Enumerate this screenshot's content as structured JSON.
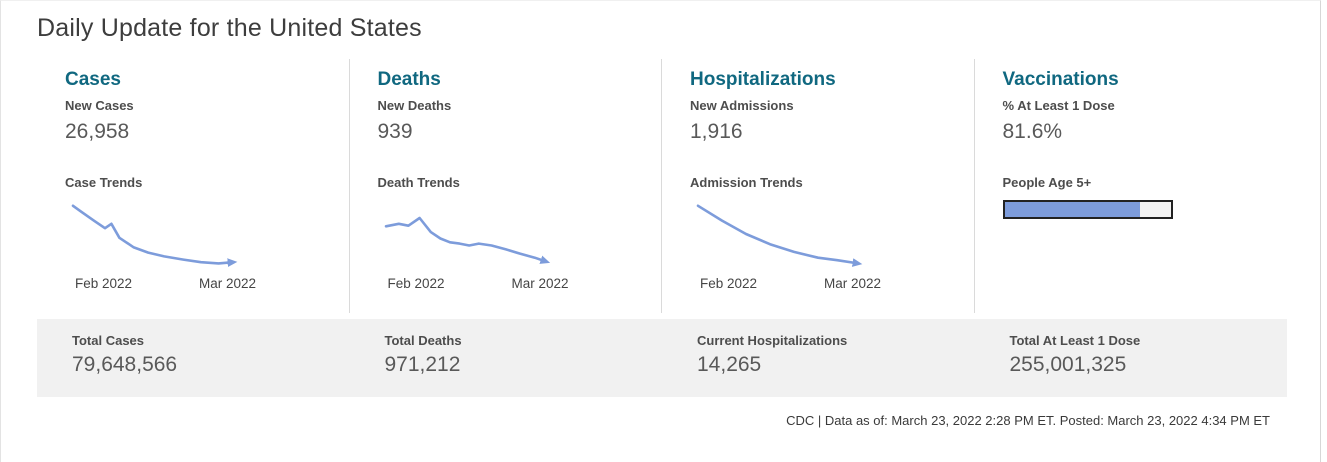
{
  "page": {
    "title": "Daily Update for the United States"
  },
  "columns": [
    {
      "heading": "Cases",
      "metric_label": "New Cases",
      "metric_value": "26,958",
      "trend_label": "Case Trends",
      "x_start": "Feb 2022",
      "x_end": "Mar 2022"
    },
    {
      "heading": "Deaths",
      "metric_label": "New Deaths",
      "metric_value": "939",
      "trend_label": "Death Trends",
      "x_start": "Feb 2022",
      "x_end": "Mar 2022"
    },
    {
      "heading": "Hospitalizations",
      "metric_label": "New Admissions",
      "metric_value": "1,916",
      "trend_label": "Admission Trends",
      "x_start": "Feb 2022",
      "x_end": "Mar 2022"
    },
    {
      "heading": "Vaccinations",
      "metric_label": "% At Least 1 Dose",
      "metric_value": "81.6%",
      "trend_label": "People Age 5+"
    }
  ],
  "totals": [
    {
      "label": "Total Cases",
      "value": "79,648,566"
    },
    {
      "label": "Total Deaths",
      "value": "971,212"
    },
    {
      "label": "Current Hospitalizations",
      "value": "14,265"
    },
    {
      "label": "Total At Least 1 Dose",
      "value": "255,001,325"
    }
  ],
  "footer": {
    "text": "CDC | Data as of: March 23, 2022 2:28 PM ET. Posted: March 23, 2022 4:34 PM ET"
  },
  "colors": {
    "accent_teal": "#106880",
    "sparkline": "#7D9CDB",
    "band_bg": "#F1F1F1",
    "divider": "#DADADA",
    "label_text": "#4D4D4D",
    "value_text": "#595959",
    "progress_fill": "#7D9CDB",
    "progress_track": "#F3F3F3",
    "progress_border": "#222222"
  },
  "chart_data": [
    {
      "type": "line",
      "name": "case-trends",
      "title": "Case Trends",
      "x_range": [
        "Feb 2022",
        "Mar 2022"
      ],
      "y_axis": "unlabeled sparkline, values normalized 0-100",
      "trend": "declining with small mid-February bump, flattening toward March, arrow at end",
      "points": [
        [
          0,
          94
        ],
        [
          5,
          85
        ],
        [
          13,
          71
        ],
        [
          20,
          59
        ],
        [
          24,
          66
        ],
        [
          29,
          44
        ],
        [
          38,
          29
        ],
        [
          47,
          21
        ],
        [
          57,
          15
        ],
        [
          69,
          10
        ],
        [
          80,
          6
        ],
        [
          91,
          4
        ],
        [
          100,
          6
        ]
      ]
    },
    {
      "type": "line",
      "name": "death-trends",
      "title": "Death Trends",
      "x_range": [
        "Feb 2022",
        "Mar 2022"
      ],
      "y_axis": "unlabeled sparkline, values normalized 0-100",
      "trend": "flat start, small peak mid-February, then steady decline, arrow at end",
      "points": [
        [
          0,
          62
        ],
        [
          8,
          66
        ],
        [
          14,
          63
        ],
        [
          21,
          75
        ],
        [
          28,
          53
        ],
        [
          34,
          43
        ],
        [
          40,
          37
        ],
        [
          46,
          35
        ],
        [
          52,
          32
        ],
        [
          58,
          35
        ],
        [
          66,
          32
        ],
        [
          75,
          26
        ],
        [
          84,
          19
        ],
        [
          93,
          13
        ],
        [
          100,
          7
        ]
      ]
    },
    {
      "type": "line",
      "name": "admission-trends",
      "title": "Admission Trends",
      "x_range": [
        "Feb 2022",
        "Mar 2022"
      ],
      "y_axis": "unlabeled sparkline, values normalized 0-100",
      "trend": "smooth concave decline flattening toward March, arrow at end",
      "points": [
        [
          0,
          94
        ],
        [
          15,
          71
        ],
        [
          30,
          50
        ],
        [
          45,
          34
        ],
        [
          60,
          22
        ],
        [
          75,
          13
        ],
        [
          87,
          9
        ],
        [
          100,
          4
        ]
      ]
    },
    {
      "type": "bar",
      "name": "people-age-5plus-at-least-1-dose",
      "title": "People Age 5+",
      "percent": 81.6,
      "max": 100
    }
  ]
}
